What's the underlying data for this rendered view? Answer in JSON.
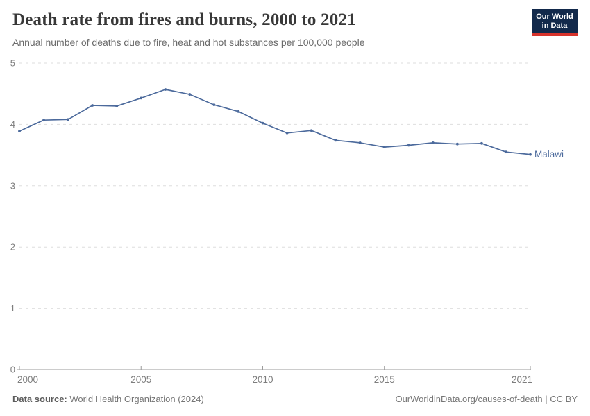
{
  "header": {
    "title": "Death rate from fires and burns, 2000 to 2021",
    "subtitle": "Annual number of deaths due to fire, heat and hot substances per 100,000 people"
  },
  "logo": {
    "line1": "Our World",
    "line2": "in Data",
    "bg_color": "#12294b",
    "accent_color": "#d7332c"
  },
  "chart_data": {
    "type": "line",
    "title": "Death rate from fires and burns, 2000 to 2021",
    "xlabel": "",
    "ylabel": "",
    "x": [
      2000,
      2001,
      2002,
      2003,
      2004,
      2005,
      2006,
      2007,
      2008,
      2009,
      2010,
      2011,
      2012,
      2013,
      2014,
      2015,
      2016,
      2017,
      2018,
      2019,
      2020,
      2021
    ],
    "series": [
      {
        "name": "Malawi",
        "color": "#4C6A9C",
        "values": [
          3.89,
          4.07,
          4.08,
          4.31,
          4.3,
          4.43,
          4.57,
          4.49,
          4.32,
          4.21,
          4.02,
          3.86,
          3.9,
          3.74,
          3.7,
          3.63,
          3.66,
          3.7,
          3.68,
          3.69,
          3.55,
          3.51
        ]
      }
    ],
    "xlim": [
      2000,
      2021
    ],
    "ylim": [
      0,
      5
    ],
    "xticks": [
      2000,
      2005,
      2010,
      2015,
      2021
    ],
    "yticks": [
      0,
      1,
      2,
      3,
      4,
      5
    ],
    "grid": "horizontal-dashed",
    "legend": "end-of-line-label",
    "grid_color": "#dedede",
    "axis_color": "#9a9a9a",
    "tick_label_color": "#7d7d7d"
  },
  "footer": {
    "source_label": "Data source:",
    "source_value": " World Health Organization (2024)",
    "attribution": "OurWorldinData.org/causes-of-death | CC BY"
  }
}
